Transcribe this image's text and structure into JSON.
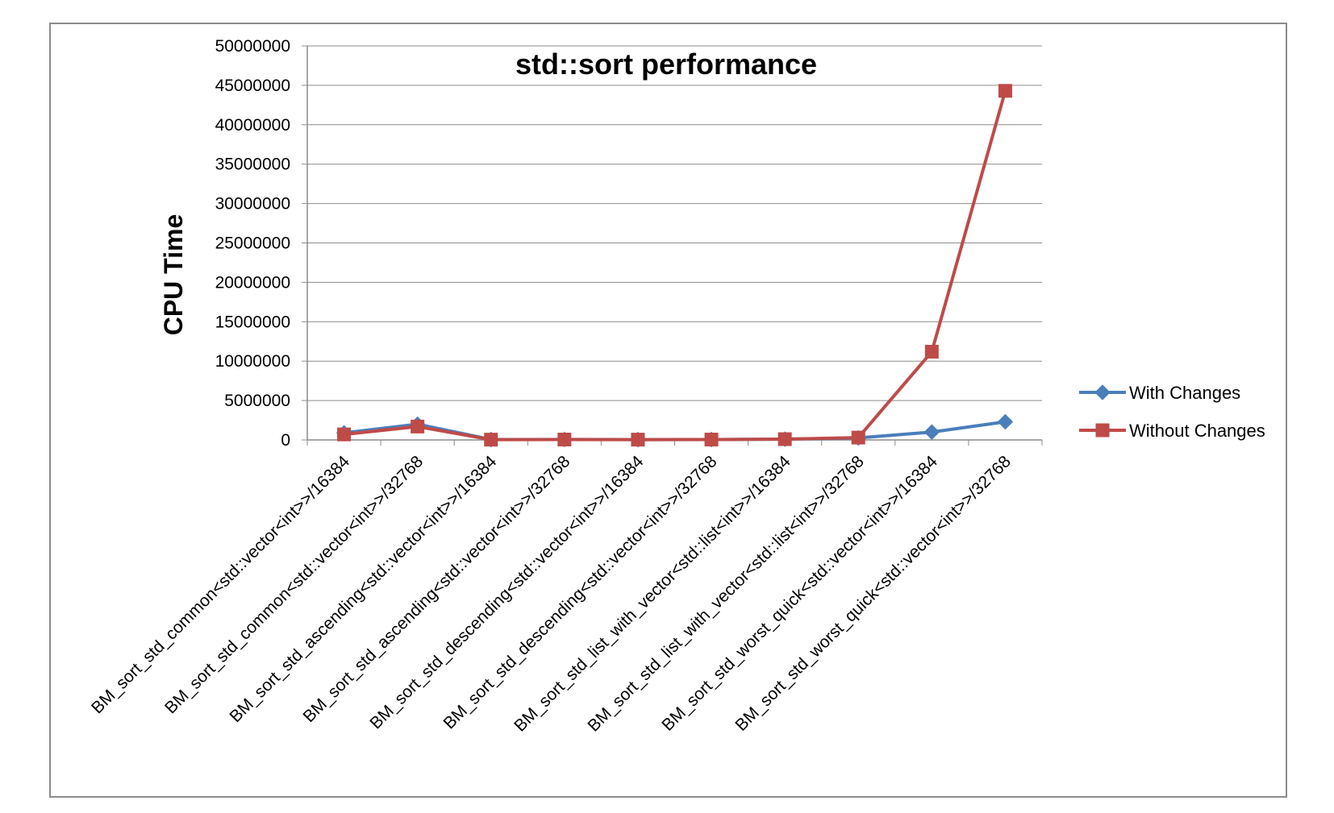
{
  "chart_data": {
    "type": "line",
    "title": "std::sort performance",
    "xlabel": "",
    "ylabel": "CPU Time",
    "ylim": [
      0,
      50000000
    ],
    "yticks": [
      0,
      5000000,
      10000000,
      15000000,
      20000000,
      25000000,
      30000000,
      35000000,
      40000000,
      45000000,
      50000000
    ],
    "grid": true,
    "legend_position": "right",
    "categories": [
      "BM_sort_std_common<std::vector<int>>/16384",
      "BM_sort_std_common<std::vector<int>>/32768",
      "BM_sort_std_ascending<std::vector<int>>/16384",
      "BM_sort_std_ascending<std::vector<int>>/32768",
      "BM_sort_std_descending<std::vector<int>>/16384",
      "BM_sort_std_descending<std::vector<int>>/32768",
      "BM_sort_std_list_with_vector<std::list<int>>/16384",
      "BM_sort_std_list_with_vector<std::list<int>>/32768",
      "BM_sort_std_worst_quick<std::vector<int>>/16384",
      "BM_sort_std_worst_quick<std::vector<int>>/32768"
    ],
    "series": [
      {
        "name": "With Changes",
        "color": "#4a7ebb",
        "marker": "diamond",
        "values": [
          900000,
          2000000,
          50000,
          60000,
          40000,
          50000,
          100000,
          250000,
          1000000,
          2300000
        ]
      },
      {
        "name": "Without Changes",
        "color": "#be4b48",
        "marker": "square",
        "values": [
          700000,
          1700000,
          40000,
          50000,
          40000,
          50000,
          100000,
          300000,
          11200000,
          44300000
        ]
      }
    ]
  }
}
